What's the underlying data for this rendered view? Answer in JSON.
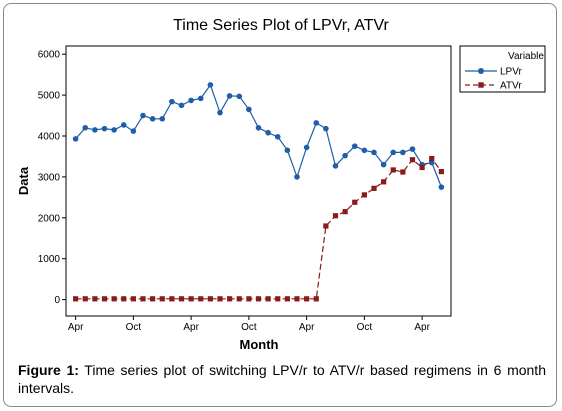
{
  "chart_data": {
    "type": "line",
    "title": "Time Series Plot of LPVr, ATVr",
    "xlabel": "Month",
    "ylabel": "Data",
    "ylim": [
      -400,
      6200
    ],
    "yticks": [
      0,
      1000,
      2000,
      3000,
      4000,
      5000,
      6000
    ],
    "x_tick_labels": [
      "Apr",
      "Oct",
      "Apr",
      "Oct",
      "Apr",
      "Oct",
      "Apr"
    ],
    "x_tick_positions": [
      1,
      7,
      13,
      19,
      25,
      31,
      37
    ],
    "x": [
      1,
      2,
      3,
      4,
      5,
      6,
      7,
      8,
      9,
      10,
      11,
      12,
      13,
      14,
      15,
      16,
      17,
      18,
      19,
      20,
      21,
      22,
      23,
      24,
      25,
      26,
      27,
      28,
      29,
      30,
      31,
      32,
      33,
      34,
      35,
      36,
      37,
      38,
      39
    ],
    "legend_title": "Variable",
    "legend_position": "top-right",
    "series": [
      {
        "name": "LPVr",
        "color": "#1f5ea8",
        "marker": "circle",
        "line_style": "solid",
        "values": [
          3930,
          4200,
          4150,
          4180,
          4150,
          4270,
          4120,
          4500,
          4420,
          4420,
          4840,
          4750,
          4870,
          4920,
          5250,
          4570,
          4980,
          4970,
          4650,
          4200,
          4080,
          3980,
          3650,
          3000,
          3720,
          4320,
          4180,
          3270,
          3520,
          3750,
          3650,
          3600,
          3300,
          3600,
          3600,
          3680,
          3300,
          3350,
          2750
        ]
      },
      {
        "name": "ATVr",
        "color": "#8b1a1a",
        "marker": "square",
        "line_style": "dashed",
        "values": [
          20,
          20,
          20,
          20,
          20,
          20,
          20,
          20,
          20,
          20,
          20,
          20,
          20,
          20,
          20,
          20,
          20,
          20,
          20,
          20,
          20,
          20,
          20,
          20,
          20,
          20,
          1800,
          2050,
          2150,
          2380,
          2560,
          2720,
          2880,
          3170,
          3120,
          3420,
          3230,
          3450,
          3130
        ]
      }
    ]
  },
  "caption": {
    "label": "Figure 1:",
    "text": " Time series plot of switching LPV/r to ATV/r based regimens in 6 month intervals."
  }
}
